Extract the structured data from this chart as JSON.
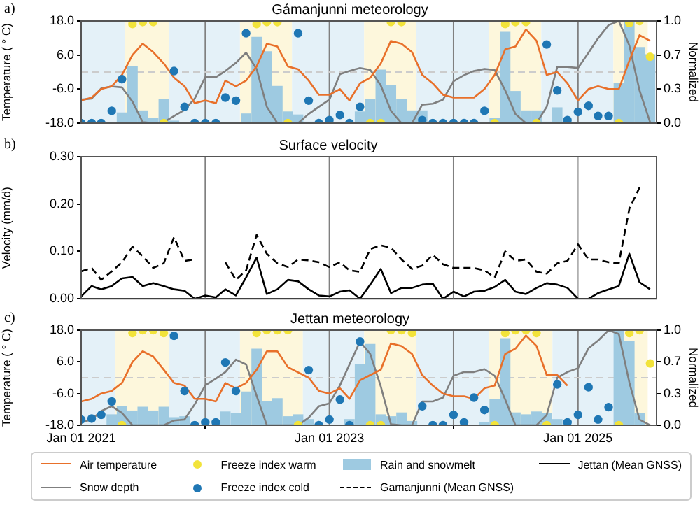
{
  "chart_data": [
    {
      "type": "line",
      "title": "Gámanjunni meteorology",
      "ylabel": "Temperature ( ° C)",
      "y2label": "Normalized",
      "annotations": [
        "a)"
      ],
      "tick_labels": "y",
      "marker": "none",
      "legend": "bottom",
      "x": [
        "2021-01",
        "2021-02",
        "2021-03",
        "2021-04",
        "2021-05",
        "2021-06",
        "2021-07",
        "2021-08",
        "2021-09",
        "2021-10",
        "2021-11",
        "2021-12",
        "2022-01",
        "2022-02",
        "2022-03",
        "2022-04",
        "2022-05",
        "2022-06",
        "2022-07",
        "2022-08",
        "2022-09",
        "2022-10",
        "2022-11",
        "2022-12",
        "2023-01",
        "2023-02",
        "2023-03",
        "2023-04",
        "2023-05",
        "2023-06",
        "2023-07",
        "2023-08",
        "2023-09",
        "2023-10",
        "2023-11",
        "2023-12",
        "2024-01",
        "2024-02",
        "2024-03",
        "2024-04",
        "2024-05",
        "2024-06",
        "2024-07",
        "2024-08",
        "2024-09",
        "2024-10",
        "2024-11",
        "2024-12",
        "2025-01",
        "2025-02",
        "2025-03",
        "2025-04",
        "2025-05",
        "2025-06",
        "2025-07",
        "2025-08"
      ],
      "xlim": [
        "2021-01-01",
        "2025-08-20"
      ],
      "xticks": [
        {
          "value": "2021-01-01",
          "label": null
        },
        {
          "value": "2023-01-01",
          "label": null
        },
        {
          "value": "2025-01-01",
          "label": null
        }
      ],
      "ylim": [
        -18,
        18
      ],
      "yticks": [
        {
          "value": -18,
          "label": "-18.0"
        },
        {
          "value": -6,
          "label": "-6.0"
        },
        {
          "value": 6,
          "label": "6.0"
        },
        {
          "value": 18,
          "label": "18.0"
        }
      ],
      "y2lim": [
        0,
        1
      ],
      "y2ticks": [
        {
          "value": 0,
          "label": "0.0"
        },
        {
          "value": 0.333,
          "label": "0.3"
        },
        {
          "value": 0.667,
          "label": "0.7"
        },
        {
          "value": 1,
          "label": "1.0"
        }
      ],
      "bands": [
        {
          "axis": "x",
          "from": "2021-01-01",
          "to": "2021-05-10",
          "color": "#e4f1f8"
        },
        {
          "axis": "x",
          "from": "2021-05-10",
          "to": "2021-09-16",
          "color": "#fdf7dc"
        },
        {
          "axis": "x",
          "from": "2021-09-16",
          "to": "2022-04-13",
          "color": "#e4f1f8"
        },
        {
          "axis": "x",
          "from": "2022-04-13",
          "to": "2022-09-13",
          "color": "#fdf7dc"
        },
        {
          "axis": "x",
          "from": "2022-09-13",
          "to": "2023-04-13",
          "color": "#e4f1f8"
        },
        {
          "axis": "x",
          "from": "2023-04-13",
          "to": "2023-09-13",
          "color": "#fdf7dc"
        },
        {
          "axis": "x",
          "from": "2023-09-13",
          "to": "2024-04-15",
          "color": "#e4f1f8"
        },
        {
          "axis": "x",
          "from": "2024-04-15",
          "to": "2024-09-15",
          "color": "#fdf7dc"
        },
        {
          "axis": "x",
          "from": "2024-09-15",
          "to": "2025-04-15",
          "color": "#e4f1f8"
        },
        {
          "axis": "x",
          "from": "2025-04-15",
          "to": "2025-07-25",
          "color": "#fdf7dc"
        }
      ],
      "ref_lines": [
        {
          "axis": "x",
          "value": "2022-01-01",
          "color": "#808080"
        },
        {
          "axis": "x",
          "value": "2023-01-01",
          "color": "#808080"
        },
        {
          "axis": "x",
          "value": "2024-01-01",
          "color": "#808080"
        },
        {
          "axis": "x",
          "value": "2025-01-01",
          "color": "#808080"
        },
        {
          "axis": "y",
          "value": 0,
          "color": "#cccccc",
          "line_style": "dashed"
        }
      ],
      "series": [
        {
          "name": "Air temperature",
          "color": "#e8702a",
          "values": [
            -10,
            -9,
            -6,
            -5,
            -1,
            6,
            10,
            7,
            3,
            -2,
            -5,
            -11,
            -10,
            -11,
            -3,
            -5,
            -3,
            2,
            10,
            9,
            2,
            1,
            -3,
            -8,
            -8,
            -6,
            -10,
            -4,
            -2,
            3,
            11,
            10,
            7,
            -1,
            -4,
            -8,
            -9,
            -9,
            -9,
            -6,
            -1,
            8,
            9,
            15,
            11,
            -1,
            0,
            -4,
            -10,
            -6,
            -5,
            -6,
            -6,
            4,
            13,
            11
          ]
        },
        {
          "name": "Snow depth",
          "axis": "y2",
          "color": "#7f7f7f",
          "values": [
            0.23,
            0.24,
            0.34,
            0.36,
            0.35,
            0.21,
            0.01,
            0,
            0.01,
            0.07,
            0.13,
            0.24,
            0.45,
            0.45,
            0.51,
            0.59,
            0.69,
            0.53,
            0.16,
            0,
            0,
            0,
            0.09,
            0.16,
            0.23,
            0.48,
            0.51,
            0.54,
            0.52,
            0.37,
            0.12,
            0,
            0,
            0.18,
            0.19,
            0.23,
            0.41,
            0.47,
            0.51,
            0.53,
            0.52,
            0.32,
            0.09,
            0,
            0,
            0.16,
            0.55,
            0.55,
            0.54,
            0.69,
            0.83,
            0.96,
            1.0,
            0.76,
            0.32,
            0.01
          ]
        },
        {
          "name": "Freeze index warm",
          "type": "scatter",
          "axis": "y2",
          "marker": "circle",
          "color": "#f2e33a",
          "values": [
            null,
            null,
            null,
            null,
            null,
            0.97,
            0.99,
            0.99,
            0,
            null,
            null,
            null,
            null,
            null,
            null,
            null,
            null,
            0.97,
            0.99,
            0.99,
            0,
            null,
            null,
            null,
            null,
            null,
            null,
            null,
            0,
            0,
            0.99,
            0.99,
            null,
            null,
            null,
            null,
            null,
            null,
            null,
            null,
            0,
            0.97,
            0.99,
            0.99,
            0,
            null,
            null,
            null,
            null,
            null,
            null,
            null,
            0,
            0.98,
            1.0,
            0.65
          ]
        },
        {
          "name": "Freeze index cold",
          "type": "scatter",
          "axis": "y2",
          "marker": "circle",
          "color": "#1f77b4",
          "values": [
            0,
            0,
            0,
            0.12,
            0.43,
            null,
            null,
            null,
            null,
            0.51,
            0.16,
            0,
            0,
            0,
            0.25,
            0.22,
            0.88,
            null,
            null,
            null,
            null,
            0.88,
            0.22,
            0,
            0.03,
            0.08,
            0,
            0.16,
            null,
            null,
            null,
            null,
            null,
            0.03,
            0,
            0,
            0,
            0,
            0,
            0.12,
            null,
            null,
            null,
            null,
            null,
            0.77,
            0.32,
            0.03,
            0.11,
            0.17,
            0.07,
            0.07,
            null,
            null,
            null,
            null
          ]
        },
        {
          "name": "Rain and snowmelt",
          "type": "bar",
          "axis": "y2",
          "color": "#9ecae1",
          "values": [
            0,
            0,
            0,
            0,
            0.1,
            0.55,
            0.12,
            0.05,
            0.23,
            0.02,
            0,
            0,
            0,
            0,
            0,
            0,
            0.09,
            0.84,
            0.7,
            0.36,
            0.11,
            0.08,
            0.01,
            0,
            0,
            0,
            0,
            0.11,
            0.23,
            0.52,
            0.37,
            0.23,
            0.12,
            0.12,
            0,
            0,
            0,
            0,
            0,
            0,
            0.05,
            0.89,
            0.31,
            0.12,
            0.12,
            0.01,
            0.15,
            null,
            0,
            0,
            0,
            0,
            0.39,
            1.0,
            0.74,
            0.67
          ]
        }
      ]
    },
    {
      "type": "line",
      "title": "Surface velocity",
      "ylabel": "Velocity (mm/d)",
      "annotations": [
        "b)"
      ],
      "tick_labels": "y",
      "marker": "none",
      "legend": "bottom",
      "x": [
        "2021-01",
        "2021-02",
        "2021-03",
        "2021-04",
        "2021-05",
        "2021-06",
        "2021-07",
        "2021-08",
        "2021-09",
        "2021-10",
        "2021-11",
        "2021-12",
        "2022-01",
        "2022-02",
        "2022-03",
        "2022-04",
        "2022-05",
        "2022-06",
        "2022-07",
        "2022-08",
        "2022-09",
        "2022-10",
        "2022-11",
        "2022-12",
        "2023-01",
        "2023-02",
        "2023-03",
        "2023-04",
        "2023-05",
        "2023-06",
        "2023-07",
        "2023-08",
        "2023-09",
        "2023-10",
        "2023-11",
        "2023-12",
        "2024-01",
        "2024-02",
        "2024-03",
        "2024-04",
        "2024-05",
        "2024-06",
        "2024-07",
        "2024-08",
        "2024-09",
        "2024-10",
        "2024-11",
        "2024-12",
        "2025-01",
        "2025-02",
        "2025-03",
        "2025-04",
        "2025-05",
        "2025-06",
        "2025-07",
        "2025-08"
      ],
      "xlim": [
        "2021-01-01",
        "2025-08-20"
      ],
      "xticks": [
        {
          "value": "2021-01-01",
          "label": null
        },
        {
          "value": "2023-01-01",
          "label": null
        },
        {
          "value": "2025-01-01",
          "label": null
        }
      ],
      "ylim": [
        0,
        0.3
      ],
      "yticks": [
        {
          "value": 0,
          "label": "0.00"
        },
        {
          "value": 0.1,
          "label": "0.10"
        },
        {
          "value": 0.2,
          "label": "0.20"
        },
        {
          "value": 0.3,
          "label": "0.30"
        }
      ],
      "ref_lines": [
        {
          "axis": "x",
          "value": "2022-01-01",
          "color": "#808080"
        },
        {
          "axis": "x",
          "value": "2023-01-01",
          "color": "#808080"
        },
        {
          "axis": "x",
          "value": "2024-01-01",
          "color": "#808080"
        },
        {
          "axis": "x",
          "value": "2025-01-01",
          "color": "#b0b0b0"
        }
      ],
      "series": [
        {
          "name": "Gamanjunni (Mean GNSS)",
          "color": "#000000",
          "line_style": "dashed",
          "values": [
            0.058,
            0.065,
            0.04,
            0.058,
            0.077,
            0.11,
            0.09,
            0.065,
            0.075,
            0.13,
            0.08,
            0.083,
            null,
            null,
            0.077,
            0.04,
            0.06,
            0.135,
            0.095,
            0.075,
            0.067,
            0.083,
            0.081,
            0.077,
            0.067,
            0.077,
            0.06,
            0.057,
            0.105,
            0.113,
            0.108,
            0.083,
            0.063,
            0.07,
            0.093,
            0.073,
            0.065,
            0.065,
            0.065,
            0.06,
            0.045,
            0.1,
            0.08,
            0.083,
            0.057,
            0.053,
            0.075,
            0.08,
            0.115,
            0.083,
            0.083,
            0.077,
            0.075,
            0.19,
            0.235,
            null
          ]
        },
        {
          "name": "Jettan (Mean GNSS)",
          "color": "#000000",
          "line_style": "solid",
          "values": [
            0.005,
            0.027,
            0.02,
            0.027,
            0.043,
            0.046,
            0.027,
            0.033,
            0.027,
            0.02,
            0.017,
            0,
            0.007,
            0.003,
            0.02,
            0.007,
            0.045,
            0.087,
            0.01,
            0.02,
            0.04,
            0.037,
            0.02,
            0.007,
            0.005,
            0.015,
            0.018,
            0,
            0.03,
            0.063,
            0.012,
            0.023,
            0.023,
            0.03,
            0.032,
            0,
            0.015,
            0.005,
            0.015,
            0.017,
            0.025,
            0.04,
            0.015,
            0.01,
            0.023,
            0.033,
            0.03,
            0.023,
            0,
            0,
            0.012,
            0.02,
            0.027,
            0.095,
            0.035,
            0.02
          ]
        }
      ]
    },
    {
      "type": "line",
      "title": "Jettan meteorology",
      "ylabel": "Temperature ( ° C)",
      "y2label": "Normalized",
      "annotations": [
        "c)"
      ],
      "marker": "none",
      "legend": "bottom",
      "x": [
        "2021-01",
        "2021-02",
        "2021-03",
        "2021-04",
        "2021-05",
        "2021-06",
        "2021-07",
        "2021-08",
        "2021-09",
        "2021-10",
        "2021-11",
        "2021-12",
        "2022-01",
        "2022-02",
        "2022-03",
        "2022-04",
        "2022-05",
        "2022-06",
        "2022-07",
        "2022-08",
        "2022-09",
        "2022-10",
        "2022-11",
        "2022-12",
        "2023-01",
        "2023-02",
        "2023-03",
        "2023-04",
        "2023-05",
        "2023-06",
        "2023-07",
        "2023-08",
        "2023-09",
        "2023-10",
        "2023-11",
        "2023-12",
        "2024-01",
        "2024-02",
        "2024-03",
        "2024-04",
        "2024-05",
        "2024-06",
        "2024-07",
        "2024-08",
        "2024-09",
        "2024-10",
        "2024-11",
        "2024-12",
        "2025-01",
        "2025-02",
        "2025-03",
        "2025-04",
        "2025-05",
        "2025-06",
        "2025-07",
        "2025-08"
      ],
      "xlim": [
        "2021-01-01",
        "2025-08-20"
      ],
      "xticks": [
        {
          "value": "2021-01-01",
          "label": "Jan 01 2021"
        },
        {
          "value": "2023-01-01",
          "label": "Jan 01 2023"
        },
        {
          "value": "2025-01-01",
          "label": "Jan 01 2025"
        }
      ],
      "ylim": [
        -18,
        18
      ],
      "yticks": [
        {
          "value": -18,
          "label": "-18.0"
        },
        {
          "value": -6,
          "label": "-6.0"
        },
        {
          "value": 6,
          "label": "6.0"
        },
        {
          "value": 18,
          "label": "18.0"
        }
      ],
      "y2lim": [
        0,
        1
      ],
      "y2ticks": [
        {
          "value": 0,
          "label": "0.0"
        },
        {
          "value": 0.333,
          "label": "0.3"
        },
        {
          "value": 0.667,
          "label": "0.7"
        },
        {
          "value": 1,
          "label": "1.0"
        }
      ],
      "bands": [
        {
          "axis": "x",
          "from": "2021-01-01",
          "to": "2021-04-12",
          "color": "#e4f1f8"
        },
        {
          "axis": "x",
          "from": "2021-04-12",
          "to": "2021-09-16",
          "color": "#fdf7dc"
        },
        {
          "axis": "x",
          "from": "2021-09-16",
          "to": "2022-04-13",
          "color": "#e4f1f8"
        },
        {
          "axis": "x",
          "from": "2022-04-13",
          "to": "2022-10-15",
          "color": "#fdf7dc"
        },
        {
          "axis": "x",
          "from": "2022-10-15",
          "to": "2023-04-13",
          "color": "#e4f1f8"
        },
        {
          "axis": "x",
          "from": "2023-04-13",
          "to": "2023-09-13",
          "color": "#fdf7dc"
        },
        {
          "axis": "x",
          "from": "2023-09-13",
          "to": "2024-04-15",
          "color": "#e4f1f8"
        },
        {
          "axis": "x",
          "from": "2024-04-15",
          "to": "2024-10-18",
          "color": "#fdf7dc"
        },
        {
          "axis": "x",
          "from": "2024-10-18",
          "to": "2025-04-25",
          "color": "#e4f1f8"
        },
        {
          "axis": "x",
          "from": "2025-04-25",
          "to": "2025-07-25",
          "color": "#fdf7dc"
        }
      ],
      "ref_lines": [
        {
          "axis": "x",
          "value": "2022-01-01",
          "color": "#808080"
        },
        {
          "axis": "x",
          "value": "2023-01-01",
          "color": "#808080"
        },
        {
          "axis": "x",
          "value": "2024-01-01",
          "color": "#808080"
        },
        {
          "axis": "x",
          "value": "2025-01-01",
          "color": "#808080"
        },
        {
          "axis": "y",
          "value": 0,
          "color": "#cccccc",
          "line_style": "dashed"
        }
      ],
      "series": [
        {
          "name": "Air temperature",
          "color": "#e8702a",
          "values": [
            -9,
            -8,
            -6,
            -5,
            -2,
            6,
            10,
            8,
            3,
            -2,
            -3,
            -8,
            -8,
            -9,
            -2,
            -4,
            -2,
            3,
            10,
            10,
            4,
            2,
            0,
            -5,
            -6,
            -4,
            -8,
            -1,
            1,
            3,
            13,
            12,
            9,
            1,
            -3,
            -6,
            -7,
            -7,
            -8,
            -4,
            -3,
            9,
            11,
            16,
            12,
            1,
            1,
            -3,
            null,
            null,
            null,
            null,
            null,
            null,
            null,
            null
          ]
        },
        {
          "name": "Snow depth",
          "axis": "y2",
          "color": "#7f7f7f",
          "values": [
            0.03,
            0.06,
            0.15,
            0.2,
            0.13,
            0,
            0,
            0,
            0,
            0.05,
            0.06,
            0.22,
            0.42,
            0.49,
            0.56,
            0.69,
            0.64,
            0.31,
            0,
            0,
            0,
            0,
            0.08,
            0.2,
            0.23,
            0.42,
            0.64,
            0.88,
            0.75,
            0.41,
            0.01,
            0,
            0,
            0.25,
            0.25,
            0.29,
            0.52,
            0.56,
            0.56,
            0.59,
            0.52,
            0.27,
            0,
            0,
            0,
            0.11,
            0.5,
            0.56,
            0.6,
            0.81,
            0.89,
            1.0,
            0.96,
            0.45,
            0.06,
            0
          ]
        },
        {
          "name": "Freeze index warm",
          "type": "scatter",
          "axis": "y2",
          "marker": "circle",
          "color": "#f2e33a",
          "values": [
            null,
            null,
            null,
            null,
            0,
            0.97,
            1.0,
            1.0,
            0.97,
            null,
            null,
            null,
            null,
            null,
            null,
            null,
            null,
            0.97,
            1.0,
            1.0,
            1.0,
            0,
            null,
            null,
            null,
            null,
            null,
            null,
            0,
            0,
            1.0,
            1.0,
            0.97,
            null,
            null,
            null,
            null,
            null,
            null,
            null,
            0,
            0.97,
            1.0,
            1.0,
            0.97,
            0,
            null,
            null,
            null,
            null,
            null,
            null,
            0,
            0.97,
            1.0,
            0.65
          ]
        },
        {
          "name": "Freeze index cold",
          "type": "scatter",
          "axis": "y2",
          "marker": "circle",
          "color": "#1f77b4",
          "values": [
            0.06,
            0.07,
            0.11,
            0.25,
            null,
            null,
            null,
            null,
            null,
            0.94,
            0.36,
            0,
            0.03,
            0.03,
            0.66,
            0.36,
            null,
            null,
            null,
            null,
            null,
            null,
            0.58,
            0,
            0.06,
            0.27,
            0,
            0.88,
            null,
            null,
            null,
            null,
            null,
            0.2,
            0,
            0,
            0.11,
            0.03,
            0.29,
            0.16,
            null,
            null,
            null,
            null,
            null,
            null,
            0.43,
            0.03,
            0.11,
            0.4,
            0.06,
            0.19,
            null,
            null,
            null,
            null
          ]
        },
        {
          "name": "Rain and snowmelt",
          "type": "bar",
          "axis": "y2",
          "color": "#9ecae1",
          "values": [
            0,
            0,
            0,
            0.11,
            0.2,
            0.15,
            0.19,
            0.15,
            0.19,
            0.08,
            0.09,
            0,
            0,
            null,
            0.14,
            0.12,
            0.35,
            0.8,
            0.25,
            0.28,
            0.09,
            0.11,
            0.06,
            0,
            0,
            0,
            0.06,
            0.64,
            0.85,
            0.11,
            0.09,
            0.13,
            0.04,
            0,
            0,
            0,
            0,
            0,
            0,
            0.03,
            0.27,
            0.91,
            0.13,
            0.11,
            0.14,
            0.12,
            0.06,
            0,
            0,
            0,
            0,
            0,
            1.0,
            0.88,
            0.12,
            0
          ]
        }
      ]
    }
  ]
}
